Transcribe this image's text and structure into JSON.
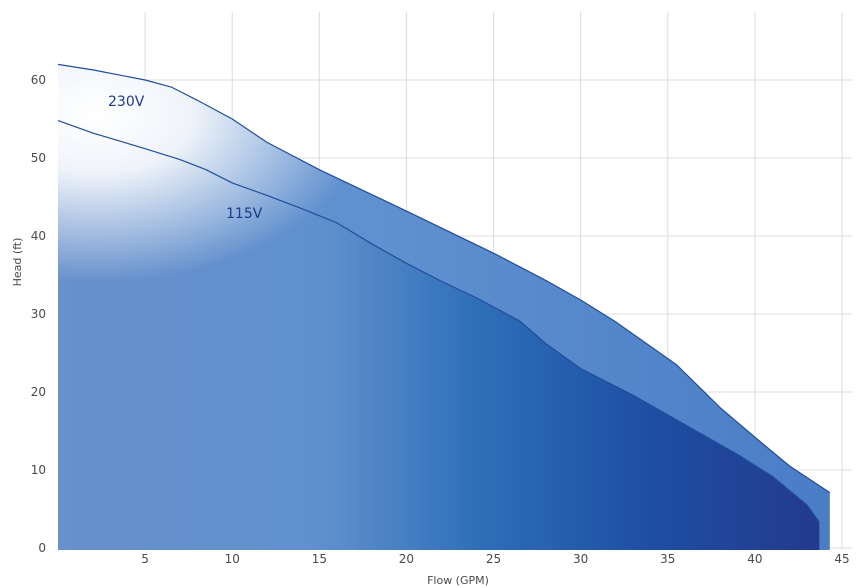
{
  "chart_data": {
    "type": "area",
    "xlabel": "Flow (GPM)",
    "ylabel": "Head (ft)",
    "xlim": [
      0,
      45
    ],
    "ylim": [
      0,
      68
    ],
    "x_ticks": [
      5,
      10,
      15,
      20,
      25,
      30,
      35,
      40,
      45
    ],
    "y_ticks": [
      0,
      10,
      20,
      30,
      40,
      50,
      60
    ],
    "grid": true,
    "series": [
      {
        "name": "230V",
        "x": [
          0,
          2,
          5,
          6.5,
          8,
          10,
          12,
          15,
          20,
          25,
          28,
          30,
          32,
          35.5,
          38,
          40,
          42,
          44.3
        ],
        "y": [
          62,
          61.3,
          60,
          59.1,
          57.4,
          55,
          52,
          48.5,
          43.2,
          37.8,
          34.3,
          31.8,
          29,
          23.5,
          18,
          14.2,
          10.5,
          7.1
        ]
      },
      {
        "name": "115V",
        "x": [
          0,
          2,
          5,
          7,
          8.5,
          10,
          12,
          14,
          16,
          18,
          20,
          22,
          24,
          26.5,
          28,
          30,
          33,
          36,
          39,
          41,
          43,
          43.7
        ],
        "y": [
          54.8,
          53.2,
          51.2,
          49.8,
          48.5,
          46.8,
          45.2,
          43.5,
          41.7,
          39,
          36.5,
          34.2,
          32.1,
          29.1,
          26.2,
          23,
          19.6,
          15.8,
          12,
          9.2,
          5.5,
          3.3
        ]
      }
    ]
  }
}
